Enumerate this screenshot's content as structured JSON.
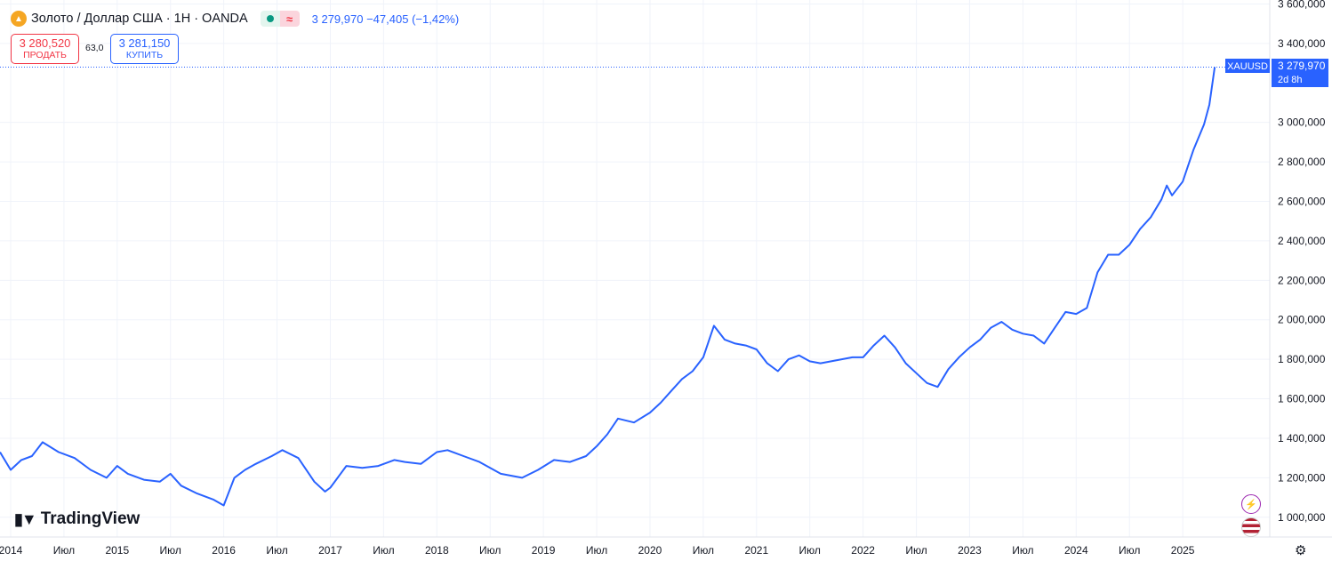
{
  "header": {
    "symbol_title": "Золото / Доллар США · 1Н · OANDA",
    "approx_symbol": "≈",
    "last_price": "3 279,970",
    "change": "−47,405",
    "change_pct": "(−1,42%)"
  },
  "trade": {
    "sell_price": "3 280,520",
    "sell_label": "ПРОДАТЬ",
    "spread": "63,0",
    "buy_price": "3 281,150",
    "buy_label": "КУПИТЬ"
  },
  "price_tag": {
    "symbol": "XAUUSD",
    "price": "3 279,970",
    "countdown": "2d 8h"
  },
  "branding": {
    "logo_text": "TradingView"
  },
  "colors": {
    "line": "#2962ff",
    "sell": "#f23645",
    "buy": "#2962ff",
    "grid": "#f0f3fa"
  },
  "icons": {
    "symbol": "gold-coin-icon",
    "bolt": "bolt-icon",
    "flag": "us-flag-icon",
    "settings": "gear-icon"
  },
  "chart_data": {
    "type": "line",
    "y_ticks": [
      "3 600,000",
      "3 400,000",
      "3 000,000",
      "2 800,000",
      "2 600,000",
      "2 400,000",
      "2 200,000",
      "2 000,000",
      "1 800,000",
      "1 600,000",
      "1 400,000",
      "1 200,000",
      "1 000,000"
    ],
    "x_ticks": [
      "2014",
      "Июл",
      "2015",
      "Июл",
      "2016",
      "Июл",
      "2017",
      "Июл",
      "2018",
      "Июл",
      "2019",
      "Июл",
      "2020",
      "Июл",
      "2021",
      "Июл",
      "2022",
      "Июл",
      "2023",
      "Июл",
      "2024",
      "Июл",
      "2025"
    ],
    "ylim": [
      900,
      3620
    ],
    "xlim": [
      2013.9,
      2025.75
    ],
    "series": [
      {
        "x": [
          2013.9,
          2014.0,
          2014.1,
          2014.2,
          2014.3,
          2014.45,
          2014.6,
          2014.75,
          2014.9,
          2015.0,
          2015.1,
          2015.25,
          2015.4,
          2015.5,
          2015.6,
          2015.75,
          2015.9,
          2016.0,
          2016.1,
          2016.2,
          2016.3,
          2016.45,
          2016.55,
          2016.7,
          2016.85,
          2016.95,
          2017.0,
          2017.15,
          2017.3,
          2017.45,
          2017.6,
          2017.7,
          2017.85,
          2018.0,
          2018.1,
          2018.25,
          2018.4,
          2018.6,
          2018.8,
          2018.95,
          2019.1,
          2019.25,
          2019.4,
          2019.5,
          2019.6,
          2019.7,
          2019.85,
          2020.0,
          2020.1,
          2020.2,
          2020.3,
          2020.4,
          2020.5,
          2020.6,
          2020.7,
          2020.8,
          2020.9,
          2021.0,
          2021.1,
          2021.2,
          2021.3,
          2021.4,
          2021.5,
          2021.6,
          2021.7,
          2021.8,
          2021.9,
          2022.0,
          2022.1,
          2022.2,
          2022.3,
          2022.4,
          2022.5,
          2022.6,
          2022.7,
          2022.8,
          2022.9,
          2023.0,
          2023.1,
          2023.2,
          2023.3,
          2023.4,
          2023.5,
          2023.6,
          2023.7,
          2023.8,
          2023.9,
          2024.0,
          2024.1,
          2024.2,
          2024.3,
          2024.4,
          2024.5,
          2024.6,
          2024.7,
          2024.8,
          2024.85,
          2024.9,
          2025.0,
          2025.1,
          2025.2,
          2025.25,
          2025.3
        ],
        "y": [
          1330,
          1240,
          1290,
          1310,
          1380,
          1330,
          1300,
          1240,
          1200,
          1260,
          1220,
          1190,
          1180,
          1220,
          1160,
          1120,
          1090,
          1060,
          1200,
          1240,
          1270,
          1310,
          1340,
          1300,
          1180,
          1130,
          1150,
          1260,
          1250,
          1260,
          1290,
          1280,
          1270,
          1330,
          1340,
          1310,
          1280,
          1220,
          1200,
          1240,
          1290,
          1280,
          1310,
          1360,
          1420,
          1500,
          1480,
          1530,
          1580,
          1640,
          1700,
          1740,
          1810,
          1970,
          1900,
          1880,
          1870,
          1850,
          1780,
          1740,
          1800,
          1820,
          1790,
          1780,
          1790,
          1800,
          1810,
          1810,
          1870,
          1920,
          1860,
          1780,
          1730,
          1680,
          1660,
          1750,
          1810,
          1860,
          1900,
          1960,
          1990,
          1950,
          1930,
          1920,
          1880,
          1960,
          2040,
          2030,
          2060,
          2240,
          2330,
          2330,
          2380,
          2460,
          2520,
          2610,
          2680,
          2630,
          2700,
          2860,
          2990,
          3090,
          3280
        ]
      }
    ]
  }
}
